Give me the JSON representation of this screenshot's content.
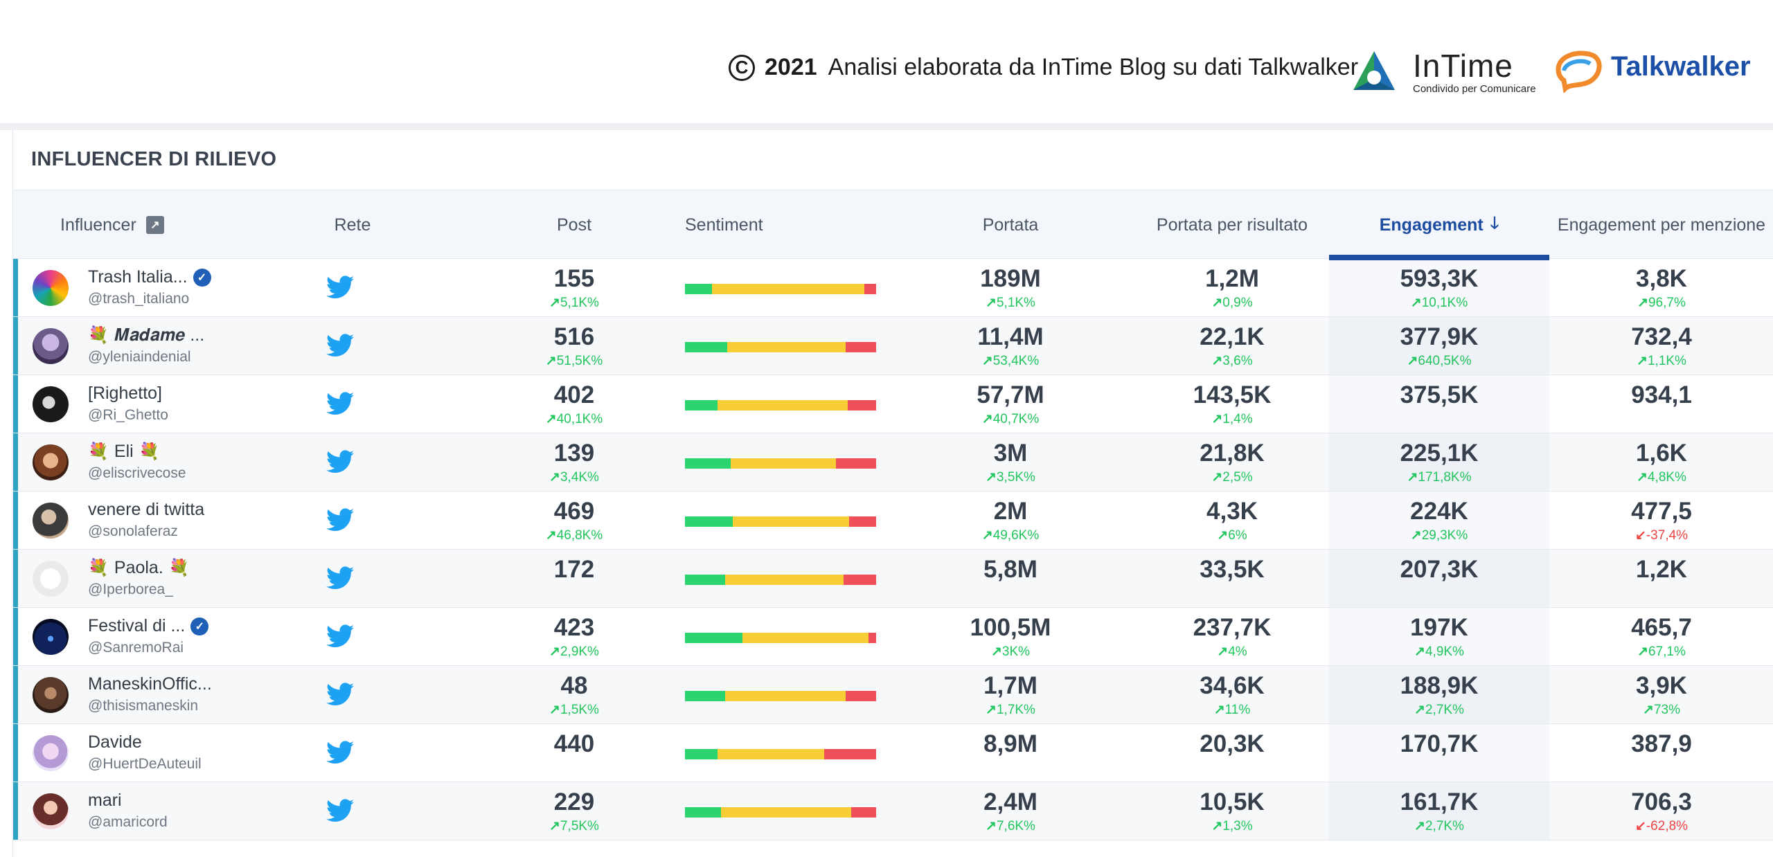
{
  "credit": {
    "copyright_symbol": "C",
    "year": "2021",
    "text": "Analisi elaborata da InTime Blog su dati Talkwalker",
    "intime_name": "InTime",
    "intime_tagline": "Condivido per Comunicare",
    "talkwalker_name": "Talkwalker"
  },
  "panel": {
    "title": "INFLUENCER DI RILIEVO"
  },
  "columns": {
    "influencer": "Influencer",
    "rete": "Rete",
    "post": "Post",
    "sentiment": "Sentiment",
    "portata": "Portata",
    "portata_risultato": "Portata per risultato",
    "engagement": "Engagement",
    "engagement_menzione": "Engagement per menzione"
  },
  "colors": {
    "accent": "#2fa3bf",
    "engagement_header": "#1c4da1",
    "positive": "#2bd46e",
    "neutral": "#f7ce35",
    "negative": "#f0505a",
    "twitter": "#1da1f2",
    "change_up": "#22c55e",
    "change_down": "#ef4444"
  },
  "rows": [
    {
      "name": "Trash Italia...",
      "handle": "@trash_italiano",
      "verified": true,
      "flowers": false,
      "network_icon": "twitter-icon",
      "post": "155",
      "post_chg": "5,1K%",
      "sentiment": {
        "positive": 0.14,
        "neutral": 0.8,
        "negative": 0.06
      },
      "portata": "189M",
      "portata_chg": "5,1K%",
      "portata_ris": "1,2M",
      "portata_ris_chg": "0,9%",
      "engagement": "593,3K",
      "engagement_chg": "10,1K%",
      "eng_menz": "3,8K",
      "eng_menz_chg": "96,7%",
      "eng_menz_dir": "up"
    },
    {
      "name": "𝑴𝒂𝒅𝒂𝒎𝒆 ...",
      "handle": "@yleniaindenial",
      "verified": false,
      "flowers": "one",
      "network_icon": "twitter-icon",
      "post": "516",
      "post_chg": "51,5K%",
      "sentiment": {
        "positive": 0.22,
        "neutral": 0.62,
        "negative": 0.16
      },
      "portata": "11,4M",
      "portata_chg": "53,4K%",
      "portata_ris": "22,1K",
      "portata_ris_chg": "3,6%",
      "engagement": "377,9K",
      "engagement_chg": "640,5K%",
      "eng_menz": "732,4",
      "eng_menz_chg": "1,1K%",
      "eng_menz_dir": "up"
    },
    {
      "name": "[Righetto]",
      "handle": "@Ri_Ghetto",
      "verified": false,
      "flowers": false,
      "network_icon": "twitter-icon",
      "post": "402",
      "post_chg": "40,1K%",
      "sentiment": {
        "positive": 0.17,
        "neutral": 0.68,
        "negative": 0.15
      },
      "portata": "57,7M",
      "portata_chg": "40,7K%",
      "portata_ris": "143,5K",
      "portata_ris_chg": "1,4%",
      "engagement": "375,5K",
      "engagement_chg": "",
      "eng_menz": "934,1",
      "eng_menz_chg": "",
      "eng_menz_dir": "up"
    },
    {
      "name": "Eli",
      "handle": "@eliscrivecose",
      "verified": false,
      "flowers": "both",
      "network_icon": "twitter-icon",
      "post": "139",
      "post_chg": "3,4K%",
      "sentiment": {
        "positive": 0.24,
        "neutral": 0.55,
        "negative": 0.21
      },
      "portata": "3M",
      "portata_chg": "3,5K%",
      "portata_ris": "21,8K",
      "portata_ris_chg": "2,5%",
      "engagement": "225,1K",
      "engagement_chg": "171,8K%",
      "eng_menz": "1,6K",
      "eng_menz_chg": "4,8K%",
      "eng_menz_dir": "up"
    },
    {
      "name": "venere di twitta",
      "handle": "@sonolaferaz",
      "verified": false,
      "flowers": false,
      "network_icon": "twitter-icon",
      "post": "469",
      "post_chg": "46,8K%",
      "sentiment": {
        "positive": 0.25,
        "neutral": 0.61,
        "negative": 0.14
      },
      "portata": "2M",
      "portata_chg": "49,6K%",
      "portata_ris": "4,3K",
      "portata_ris_chg": "6%",
      "engagement": "224K",
      "engagement_chg": "29,3K%",
      "eng_menz": "477,5",
      "eng_menz_chg": "-37,4%",
      "eng_menz_dir": "down"
    },
    {
      "name": "Paola.",
      "handle": "@Iperborea_",
      "verified": false,
      "flowers": "both",
      "network_icon": "twitter-icon",
      "post": "172",
      "post_chg": "",
      "sentiment": {
        "positive": 0.21,
        "neutral": 0.62,
        "negative": 0.17
      },
      "portata": "5,8M",
      "portata_chg": "",
      "portata_ris": "33,5K",
      "portata_ris_chg": "",
      "engagement": "207,3K",
      "engagement_chg": "",
      "eng_menz": "1,2K",
      "eng_menz_chg": "",
      "eng_menz_dir": "up"
    },
    {
      "name": "Festival di ...",
      "handle": "@SanremoRai",
      "verified": true,
      "flowers": false,
      "network_icon": "twitter-icon",
      "post": "423",
      "post_chg": "2,9K%",
      "sentiment": {
        "positive": 0.3,
        "neutral": 0.66,
        "negative": 0.04
      },
      "portata": "100,5M",
      "portata_chg": "3K%",
      "portata_ris": "237,7K",
      "portata_ris_chg": "4%",
      "engagement": "197K",
      "engagement_chg": "4,9K%",
      "eng_menz": "465,7",
      "eng_menz_chg": "67,1%",
      "eng_menz_dir": "up"
    },
    {
      "name": "ManeskinOffic...",
      "handle": "@thisismaneskin",
      "verified": false,
      "flowers": false,
      "network_icon": "twitter-icon",
      "post": "48",
      "post_chg": "1,5K%",
      "sentiment": {
        "positive": 0.21,
        "neutral": 0.63,
        "negative": 0.16
      },
      "portata": "1,7M",
      "portata_chg": "1,7K%",
      "portata_ris": "34,6K",
      "portata_ris_chg": "11%",
      "engagement": "188,9K",
      "engagement_chg": "2,7K%",
      "eng_menz": "3,9K",
      "eng_menz_chg": "73%",
      "eng_menz_dir": "up"
    },
    {
      "name": "Davide",
      "handle": "@HuertDeAuteuil",
      "verified": false,
      "flowers": false,
      "network_icon": "twitter-icon",
      "post": "440",
      "post_chg": "",
      "sentiment": {
        "positive": 0.17,
        "neutral": 0.56,
        "negative": 0.27
      },
      "portata": "8,9M",
      "portata_chg": "",
      "portata_ris": "20,3K",
      "portata_ris_chg": "",
      "engagement": "170,7K",
      "engagement_chg": "",
      "eng_menz": "387,9",
      "eng_menz_chg": "",
      "eng_menz_dir": "up"
    },
    {
      "name": "mari",
      "handle": "@amaricord",
      "verified": false,
      "flowers": false,
      "network_icon": "twitter-icon",
      "post": "229",
      "post_chg": "7,5K%",
      "sentiment": {
        "positive": 0.19,
        "neutral": 0.68,
        "negative": 0.13
      },
      "portata": "2,4M",
      "portata_chg": "7,6K%",
      "portata_ris": "10,5K",
      "portata_ris_chg": "1,3%",
      "engagement": "161,7K",
      "engagement_chg": "2,7K%",
      "eng_menz": "706,3",
      "eng_menz_chg": "-62,8%",
      "eng_menz_dir": "down"
    }
  ]
}
